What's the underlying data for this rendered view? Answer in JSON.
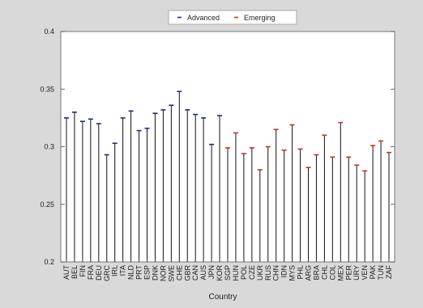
{
  "chart_data": {
    "type": "scatter",
    "xlabel": "Country",
    "ylabel": "",
    "ylim": [
      0.2,
      0.4
    ],
    "yticks": [
      0.2,
      0.25,
      0.3,
      0.35,
      0.4
    ],
    "ytick_labels": [
      "0.2",
      "0.25",
      "0.3",
      "0.35",
      "0.4"
    ],
    "grid": false,
    "legend_placement": "top-center",
    "categories": [
      "AUT",
      "BEL",
      "FIN",
      "FRA",
      "DEU",
      "GRC",
      "IRL",
      "ITA",
      "NLD",
      "PRT",
      "ESP",
      "DNK",
      "NOR",
      "SWE",
      "CHE",
      "GBR",
      "CAN",
      "AUS",
      "JPN",
      "KOR",
      "SGP",
      "HUN",
      "POL",
      "CZE",
      "UKR",
      "RUS",
      "CHN",
      "IDN",
      "MYS",
      "PHL",
      "ARG",
      "BRA",
      "CHL",
      "COL",
      "MEX",
      "PER",
      "URY",
      "VEN",
      "PAK",
      "TUN",
      "ZAF"
    ],
    "series": [
      {
        "name": "Advanced",
        "color": "#1f2a8c",
        "marker": "dash",
        "points": [
          {
            "x": "AUT",
            "y": 0.325
          },
          {
            "x": "BEL",
            "y": 0.33
          },
          {
            "x": "FIN",
            "y": 0.322
          },
          {
            "x": "FRA",
            "y": 0.324
          },
          {
            "x": "DEU",
            "y": 0.32
          },
          {
            "x": "GRC",
            "y": 0.293
          },
          {
            "x": "IRL",
            "y": 0.303
          },
          {
            "x": "ITA",
            "y": 0.325
          },
          {
            "x": "NLD",
            "y": 0.331
          },
          {
            "x": "PRT",
            "y": 0.314
          },
          {
            "x": "ESP",
            "y": 0.316
          },
          {
            "x": "DNK",
            "y": 0.329
          },
          {
            "x": "NOR",
            "y": 0.332
          },
          {
            "x": "SWE",
            "y": 0.336
          },
          {
            "x": "CHE",
            "y": 0.348
          },
          {
            "x": "GBR",
            "y": 0.332
          },
          {
            "x": "CAN",
            "y": 0.328
          },
          {
            "x": "AUS",
            "y": 0.325
          },
          {
            "x": "JPN",
            "y": 0.302
          },
          {
            "x": "KOR",
            "y": 0.327
          }
        ]
      },
      {
        "name": "Emerging",
        "color": "#d42a2a",
        "marker": "dash",
        "points": [
          {
            "x": "SGP",
            "y": 0.299
          },
          {
            "x": "HUN",
            "y": 0.312
          },
          {
            "x": "POL",
            "y": 0.294
          },
          {
            "x": "CZE",
            "y": 0.299
          },
          {
            "x": "UKR",
            "y": 0.28
          },
          {
            "x": "RUS",
            "y": 0.3
          },
          {
            "x": "CHN",
            "y": 0.315
          },
          {
            "x": "IDN",
            "y": 0.297
          },
          {
            "x": "MYS",
            "y": 0.319
          },
          {
            "x": "PHL",
            "y": 0.298
          },
          {
            "x": "ARG",
            "y": 0.282
          },
          {
            "x": "BRA",
            "y": 0.293
          },
          {
            "x": "CHL",
            "y": 0.31
          },
          {
            "x": "COL",
            "y": 0.291
          },
          {
            "x": "MEX",
            "y": 0.321
          },
          {
            "x": "PER",
            "y": 0.291
          },
          {
            "x": "URY",
            "y": 0.284
          },
          {
            "x": "VEN",
            "y": 0.279
          },
          {
            "x": "PAK",
            "y": 0.301
          },
          {
            "x": "TUN",
            "y": 0.305
          },
          {
            "x": "ZAF",
            "y": 0.295
          }
        ]
      }
    ]
  },
  "colors": {
    "figure_background": "#d9d9d9",
    "plot_background": "#ffffff",
    "stem": "#111111"
  }
}
